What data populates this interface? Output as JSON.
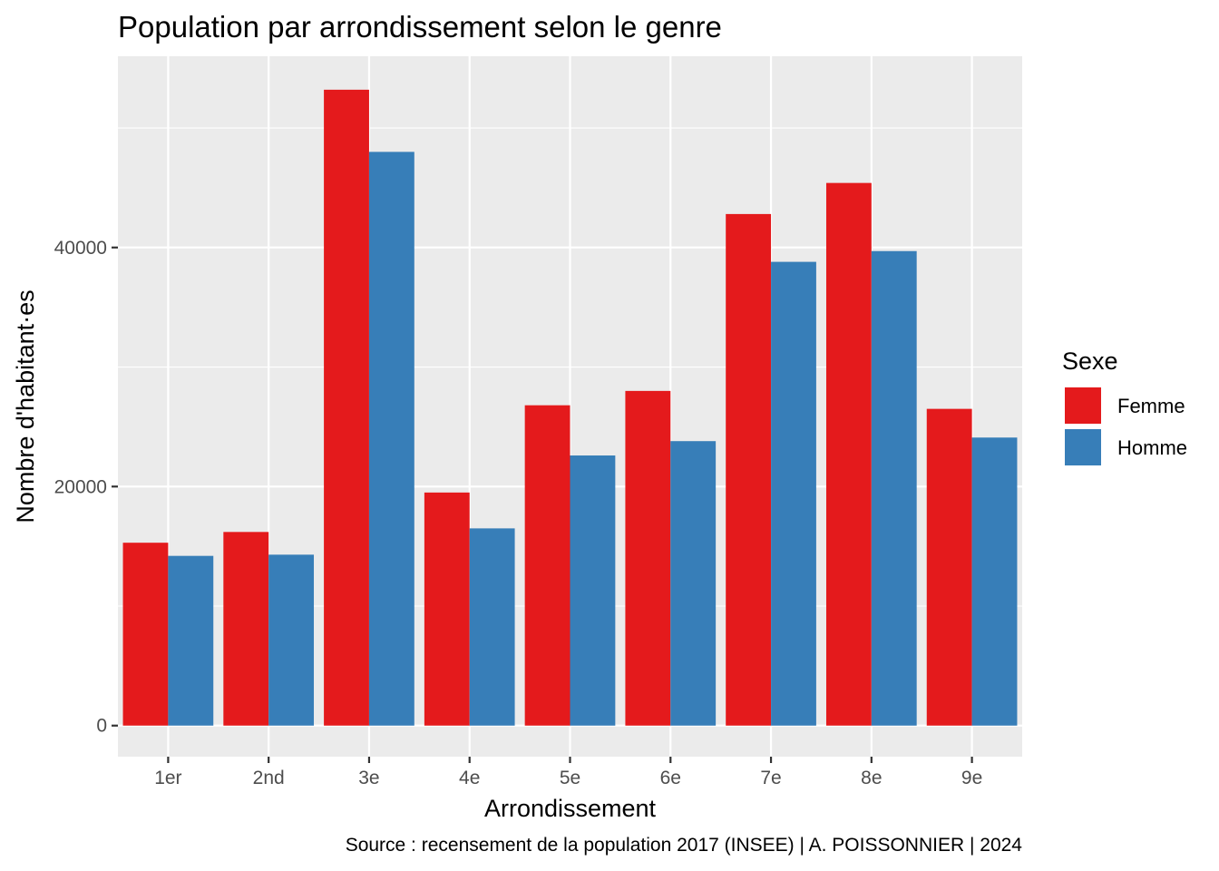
{
  "chart_data": {
    "type": "bar",
    "title": "Population par arrondissement selon le genre",
    "xlabel": "Arrondissement",
    "ylabel": "Nombre d'habitant·es",
    "caption": "Source : recensement de la population 2017 (INSEE) | A. POISSONNIER | 2024",
    "categories": [
      "1er",
      "2nd",
      "3e",
      "4e",
      "5e",
      "6e",
      "7e",
      "8e",
      "9e"
    ],
    "series": [
      {
        "name": "Femme",
        "color": "#E41A1C",
        "values": [
          15300,
          16200,
          53200,
          19500,
          26800,
          28000,
          42800,
          45400,
          26500
        ]
      },
      {
        "name": "Homme",
        "color": "#377EB8",
        "values": [
          14200,
          14300,
          48000,
          16500,
          22600,
          23800,
          38800,
          39700,
          24100
        ]
      }
    ],
    "legend_title": "Sexe",
    "legend_position": "right",
    "ylim": [
      -2600,
      56000
    ],
    "yticks": [
      0,
      20000,
      40000
    ],
    "ytick_labels": [
      "0",
      "20000",
      "40000"
    ],
    "grid": true,
    "panel_background": "#EBEBEB"
  }
}
